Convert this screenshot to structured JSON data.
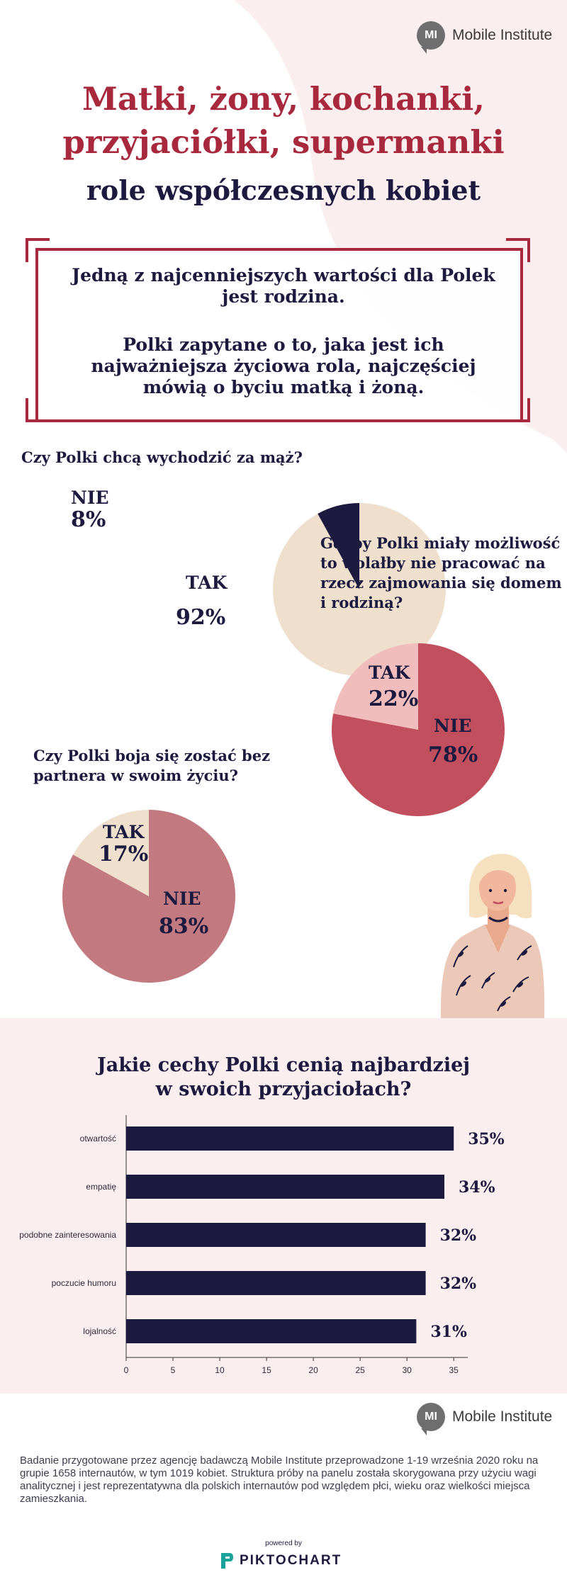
{
  "header": {
    "logo_mark": "MI",
    "logo_text": "Mobile Institute",
    "title_line1": "Matki, żony, kochanki,",
    "title_line2": "przyjaciółki, supermanki",
    "subtitle": "role współczesnych kobiet"
  },
  "intro": {
    "line1": "Jedną z najcenniejszych wartości dla Polek",
    "line2": "jest rodzina.",
    "line3": "Polki zapytane o to, jaka jest ich",
    "line4": "najważniejsza życiowa rola, najczęściej",
    "line5": "mówią o byciu matką i żoną."
  },
  "colors": {
    "navy": "#1d1a3f",
    "crimson": "#a8293d",
    "beige": "#efdfcd",
    "rose": "#c14f5e",
    "blush": "#f0bcbc",
    "mauve": "#c27a80",
    "pink_bg": "#fbeeee"
  },
  "chart_data": [
    {
      "type": "pie",
      "title": "Czy Polki chcą wychodzić za mąż?",
      "slices": [
        {
          "label": "TAK",
          "value": 92,
          "display": "92%",
          "color": "#efdfcd"
        },
        {
          "label": "NIE",
          "value": 8,
          "display": "8%",
          "color": "#1d1a3f"
        }
      ]
    },
    {
      "type": "pie",
      "title_lines": [
        "Gdyby Polki miały możliwość",
        "to wolałby nie pracować na",
        "rzecz zajmowania się domem",
        "i rodziną?"
      ],
      "slices": [
        {
          "label": "NIE",
          "value": 78,
          "display": "78%",
          "color": "#c14f5e"
        },
        {
          "label": "TAK",
          "value": 22,
          "display": "22%",
          "color": "#f0bcbc"
        }
      ]
    },
    {
      "type": "pie",
      "title_lines": [
        "Czy Polki boja się zostać bez",
        "partnera w swoim życiu?"
      ],
      "slices": [
        {
          "label": "NIE",
          "value": 83,
          "display": "83%",
          "color": "#c27a80"
        },
        {
          "label": "TAK",
          "value": 17,
          "display": "17%",
          "color": "#efdfcd"
        }
      ]
    },
    {
      "type": "bar",
      "orientation": "horizontal",
      "title_lines": [
        "Jakie cechy Polki cenią najbardziej",
        "w swoich przyjaciołach?"
      ],
      "categories": [
        "otwartość",
        "empatię",
        "podobne zainteresowania",
        "poczucie humoru",
        "lojalność"
      ],
      "values": [
        35,
        34,
        32,
        32,
        31
      ],
      "value_labels": [
        "35%",
        "34%",
        "32%",
        "32%",
        "31%"
      ],
      "xticks": [
        0,
        5,
        10,
        15,
        20,
        25,
        30,
        35
      ],
      "xlim": [
        0,
        36.5
      ],
      "color": "#1d1a3f"
    }
  ],
  "footer": {
    "logo_mark": "MI",
    "logo_text": "Mobile Institute",
    "note": "Badanie przygotowane przez agencję badawczą Mobile Institute przeprowadzone 1-19 września 2020 roku na grupie 1658 internautów, w tym 1019 kobiet. Struktura próby na panelu została skorygowana przy użyciu wagi analitycznej i jest reprezentatywna dla polskich internautów pod względem płci, wieku oraz wielkości miejsca zamieszkania.",
    "powered_by": "powered by",
    "brand": "PIKTOCHART"
  }
}
